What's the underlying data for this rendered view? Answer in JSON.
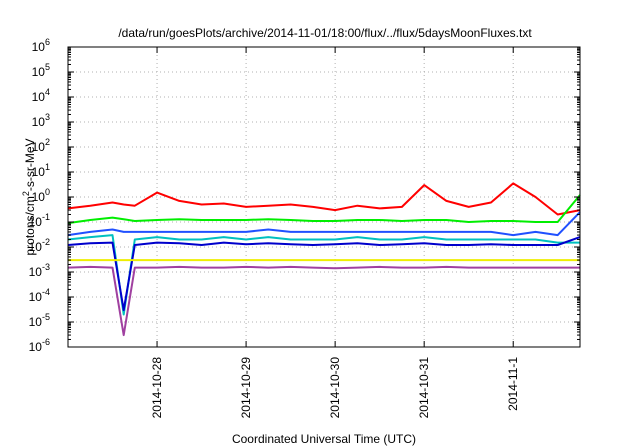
{
  "chart_data": {
    "type": "line",
    "title": "/data/run/goesPlots/archive/2014-11-01/18:00/flux/../flux/5daysMoonFluxes.txt",
    "xlabel": "Coordinated Universal Time (UTC)",
    "ylabel": "protons/cm²-s-sr-MeV",
    "yscale": "log",
    "ylim": [
      1e-06,
      1000000.0
    ],
    "xlim": [
      "2014-10-27 00:00",
      "2014-11-01 18:00"
    ],
    "grid": true,
    "legend": "none",
    "yticks": [
      {
        "value": 1e-06,
        "base": "10",
        "exp": "-6"
      },
      {
        "value": 1e-05,
        "base": "10",
        "exp": "-5"
      },
      {
        "value": 0.0001,
        "base": "10",
        "exp": "-4"
      },
      {
        "value": 0.001,
        "base": "10",
        "exp": "-3"
      },
      {
        "value": 0.01,
        "base": "10",
        "exp": "-2"
      },
      {
        "value": 0.1,
        "base": "10",
        "exp": "-1"
      },
      {
        "value": 1.0,
        "base": "10",
        "exp": "0"
      },
      {
        "value": 10.0,
        "base": "10",
        "exp": "1"
      },
      {
        "value": 100.0,
        "base": "10",
        "exp": "2"
      },
      {
        "value": 1000.0,
        "base": "10",
        "exp": "3"
      },
      {
        "value": 10000.0,
        "base": "10",
        "exp": "4"
      },
      {
        "value": 100000.0,
        "base": "10",
        "exp": "5"
      },
      {
        "value": 1000000.0,
        "base": "10",
        "exp": "6"
      }
    ],
    "xticks": [
      {
        "value": "2014-10-28",
        "label": "2014-10-28"
      },
      {
        "value": "2014-10-29",
        "label": "2014-10-29"
      },
      {
        "value": "2014-10-30",
        "label": "2014-10-30"
      },
      {
        "value": "2014-10-31",
        "label": "2014-10-31"
      },
      {
        "value": "2014-11-01",
        "label": "2014-11-1"
      }
    ],
    "x": [
      "2014-10-27 00:00",
      "2014-10-27 06:00",
      "2014-10-27 12:00",
      "2014-10-27 15:00",
      "2014-10-27 18:00",
      "2014-10-28 00:00",
      "2014-10-28 06:00",
      "2014-10-28 12:00",
      "2014-10-28 18:00",
      "2014-10-29 00:00",
      "2014-10-29 06:00",
      "2014-10-29 12:00",
      "2014-10-29 18:00",
      "2014-10-30 00:00",
      "2014-10-30 06:00",
      "2014-10-30 12:00",
      "2014-10-30 18:00",
      "2014-10-31 00:00",
      "2014-10-31 06:00",
      "2014-10-31 12:00",
      "2014-10-31 18:00",
      "2014-11-01 00:00",
      "2014-11-01 06:00",
      "2014-11-01 12:00",
      "2014-11-01 18:00"
    ],
    "series": [
      {
        "color": "#ff0000",
        "values": [
          0.35,
          0.45,
          0.6,
          0.5,
          0.45,
          1.5,
          0.7,
          0.5,
          0.55,
          0.4,
          0.45,
          0.5,
          0.4,
          0.3,
          0.45,
          0.35,
          0.4,
          3.0,
          0.7,
          0.4,
          0.6,
          3.5,
          1.0,
          0.2,
          0.3
        ]
      },
      {
        "color": "#00ee00",
        "values": [
          0.09,
          0.12,
          0.15,
          0.13,
          0.11,
          0.12,
          0.13,
          0.12,
          0.12,
          0.12,
          0.13,
          0.12,
          0.11,
          0.11,
          0.12,
          0.12,
          0.11,
          0.12,
          0.12,
          0.1,
          0.11,
          0.11,
          0.1,
          0.1,
          1.2
        ]
      },
      {
        "color": "#2050ff",
        "values": [
          0.03,
          0.04,
          0.05,
          0.04,
          0.04,
          0.04,
          0.04,
          0.04,
          0.04,
          0.04,
          0.05,
          0.04,
          0.04,
          0.04,
          0.04,
          0.04,
          0.04,
          0.04,
          0.04,
          0.04,
          0.04,
          0.03,
          0.04,
          0.03,
          0.25
        ]
      },
      {
        "color": "#00c0c0",
        "values": [
          0.02,
          0.025,
          0.03,
          2e-05,
          0.02,
          0.025,
          0.02,
          0.02,
          0.025,
          0.02,
          0.025,
          0.02,
          0.02,
          0.02,
          0.025,
          0.02,
          0.02,
          0.025,
          0.02,
          0.02,
          0.02,
          0.02,
          0.02,
          0.015,
          0.015
        ]
      },
      {
        "color": "#0000cc",
        "values": [
          0.012,
          0.014,
          0.015,
          3e-05,
          0.012,
          0.015,
          0.014,
          0.012,
          0.015,
          0.013,
          0.014,
          0.013,
          0.012,
          0.013,
          0.014,
          0.012,
          0.013,
          0.014,
          0.012,
          0.012,
          0.013,
          0.012,
          0.012,
          0.012,
          0.025
        ]
      },
      {
        "color": "#eeee00",
        "values": [
          0.003,
          0.003,
          0.003,
          0.003,
          0.003,
          0.003,
          0.003,
          0.003,
          0.003,
          0.003,
          0.003,
          0.003,
          0.003,
          0.003,
          0.003,
          0.003,
          0.003,
          0.003,
          0.003,
          0.003,
          0.003,
          0.003,
          0.003,
          0.003,
          0.003
        ]
      },
      {
        "color": "#a040a0",
        "values": [
          0.0015,
          0.0016,
          0.0015,
          3e-06,
          0.0015,
          0.0015,
          0.0016,
          0.0015,
          0.0015,
          0.0016,
          0.0015,
          0.0016,
          0.0015,
          0.0014,
          0.0015,
          0.0016,
          0.0015,
          0.0015,
          0.0016,
          0.0015,
          0.0015,
          0.0015,
          0.0015,
          0.0015,
          0.0015
        ]
      }
    ]
  }
}
